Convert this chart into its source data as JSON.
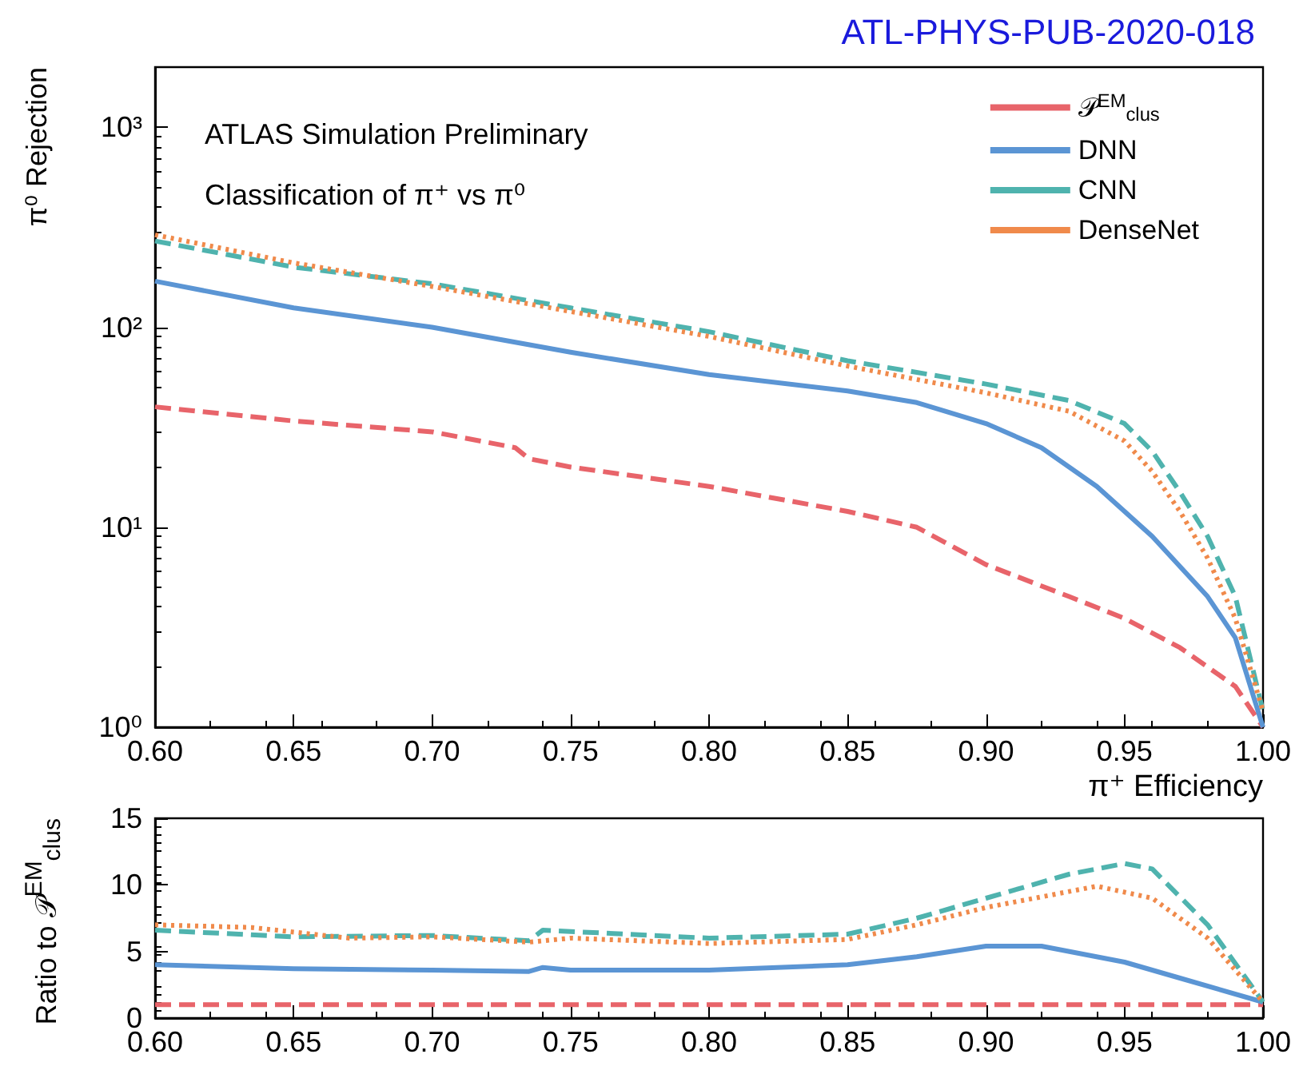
{
  "chart_data": [
    {
      "type": "line",
      "title": "ATL-PHYS-PUB-2020-018",
      "xlabel": "π⁺ Efficiency",
      "ylabel": "π⁰ Rejection",
      "annotations": [
        "ATLAS Simulation Preliminary",
        "Classification of π⁺ vs π⁰"
      ],
      "log": "y",
      "grid": false,
      "legend": "top right",
      "marker": "none",
      "xlim": [
        0.6,
        1.0
      ],
      "xticks": [
        {
          "value": 0.6,
          "label": "0.60"
        },
        0.65,
        {
          "value": 0.7,
          "label": "0.70"
        },
        0.75,
        {
          "value": 0.8,
          "label": "0.80"
        },
        0.85,
        {
          "value": 0.9,
          "label": "0.90"
        },
        0.95,
        {
          "value": 1.0,
          "label": "1.00"
        }
      ],
      "ylim": [
        1,
        2000
      ],
      "yticks": [
        {
          "value": 1,
          "label": "10⁰"
        },
        {
          "value": 10,
          "label": "10¹"
        },
        {
          "value": 100,
          "label": "10²"
        },
        {
          "value": 1000,
          "label": "10³"
        }
      ],
      "series": [
        {
          "name": "𝒫$^{EM}$$_{clus}$",
          "color": "#e8646a",
          "line_style": "dashed",
          "x": [
            0.6,
            0.65,
            0.7,
            0.73,
            0.735,
            0.75,
            0.8,
            0.85,
            0.875,
            0.9,
            0.93,
            0.95,
            0.97,
            0.99,
            1.0
          ],
          "values": [
            40,
            34,
            30,
            25,
            22,
            20,
            16,
            12,
            10,
            6.5,
            4.5,
            3.5,
            2.5,
            1.6,
            1
          ]
        },
        {
          "name": "DNN",
          "color": "#5b95d4",
          "line_style": "solid",
          "x": [
            0.6,
            0.65,
            0.7,
            0.75,
            0.8,
            0.85,
            0.875,
            0.9,
            0.92,
            0.94,
            0.96,
            0.98,
            0.99,
            1.0
          ],
          "values": [
            170,
            125,
            100,
            75,
            58,
            48,
            42,
            33,
            25,
            16,
            9,
            4.5,
            2.8,
            1
          ]
        },
        {
          "name": "CNN",
          "color": "#4fb3ae",
          "line_style": "dashed",
          "x": [
            0.6,
            0.65,
            0.7,
            0.75,
            0.8,
            0.85,
            0.9,
            0.93,
            0.95,
            0.96,
            0.97,
            0.98,
            0.99,
            1.0
          ],
          "values": [
            270,
            200,
            165,
            125,
            95,
            68,
            52,
            43,
            33,
            24,
            15,
            9,
            4.5,
            1.2
          ]
        },
        {
          "name": "DenseNet",
          "color": "#f08a4b",
          "line_style": "dotted",
          "x": [
            0.6,
            0.65,
            0.7,
            0.75,
            0.8,
            0.85,
            0.9,
            0.93,
            0.95,
            0.96,
            0.97,
            0.98,
            0.99,
            1.0
          ],
          "values": [
            290,
            210,
            160,
            120,
            90,
            64,
            47,
            38,
            27,
            19,
            12,
            7,
            3.5,
            1.2
          ]
        }
      ]
    },
    {
      "type": "line",
      "ylabel": "Ratio to 𝒫$^{EM}$$_{clus}$",
      "grid": false,
      "legend": false,
      "marker": "none",
      "xlim": [
        0.6,
        1.0
      ],
      "xticks": [
        {
          "value": 0.6,
          "label": "0.60"
        },
        0.65,
        {
          "value": 0.7,
          "label": "0.70"
        },
        0.75,
        {
          "value": 0.8,
          "label": "0.80"
        },
        0.85,
        {
          "value": 0.9,
          "label": "0.90"
        },
        0.95,
        {
          "value": 1.0,
          "label": "1.00"
        }
      ],
      "ylim": [
        0,
        15
      ],
      "yticks": [
        0,
        5,
        10,
        15
      ],
      "series": [
        {
          "color": "#e8646a",
          "line_style": "dashed",
          "x": [
            0.6,
            1.0
          ],
          "values": [
            1,
            1
          ]
        },
        {
          "color": "#5b95d4",
          "line_style": "solid",
          "x": [
            0.6,
            0.65,
            0.7,
            0.735,
            0.74,
            0.75,
            0.8,
            0.85,
            0.875,
            0.9,
            0.92,
            0.95,
            0.97,
            1.0
          ],
          "values": [
            4,
            3.7,
            3.6,
            3.5,
            3.8,
            3.6,
            3.6,
            4,
            4.6,
            5.4,
            5.4,
            4.2,
            3,
            1.2
          ]
        },
        {
          "color": "#4fb3ae",
          "line_style": "dashed",
          "x": [
            0.6,
            0.65,
            0.7,
            0.735,
            0.74,
            0.8,
            0.85,
            0.875,
            0.9,
            0.93,
            0.95,
            0.96,
            0.98,
            1.0
          ],
          "values": [
            6.6,
            6.1,
            6.2,
            5.8,
            6.6,
            6,
            6.3,
            7.5,
            9,
            10.8,
            11.6,
            11.2,
            7,
            1.2
          ]
        },
        {
          "color": "#f08a4b",
          "line_style": "dotted",
          "x": [
            0.6,
            0.635,
            0.67,
            0.7,
            0.735,
            0.75,
            0.8,
            0.85,
            0.875,
            0.9,
            0.94,
            0.96,
            0.98,
            1.0
          ],
          "values": [
            7,
            6.8,
            6,
            6.1,
            5.7,
            6,
            5.6,
            5.9,
            7,
            8.3,
            9.9,
            9,
            6,
            1.2
          ]
        }
      ]
    }
  ]
}
